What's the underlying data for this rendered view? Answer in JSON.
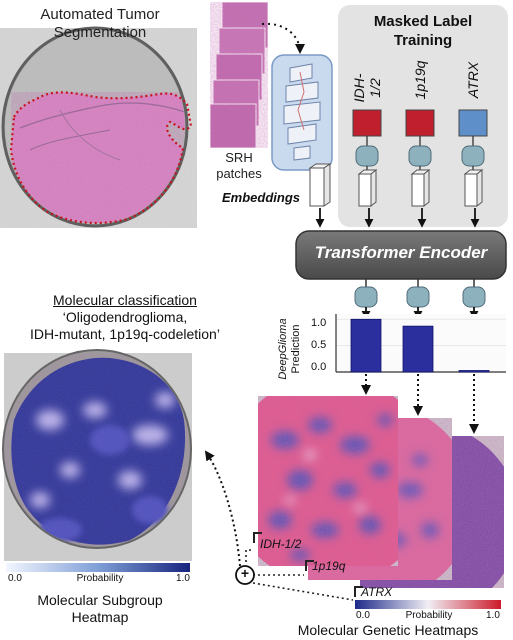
{
  "panels": {
    "segmentation_title_1": "Automated Tumor",
    "segmentation_title_2": "Segmentation",
    "srh_label_1": "SRH",
    "srh_label_2": "patches",
    "embeddings_label": "Embeddings",
    "masked_label_1": "Masked Label",
    "masked_label_2": "Training",
    "transformer_label": "Transformer Encoder",
    "classification_heading": "Molecular classification",
    "classification_line_1": "‘Oligodendroglioma,",
    "classification_line_2": "IDH-mutant, 1p19q-codeletion’",
    "subgroup_title_1": "Molecular Subgroup",
    "subgroup_title_2": "Heatmap",
    "genetic_title": "Molecular Genetic Heatmaps"
  },
  "markers": [
    {
      "label": "IDH-1/2",
      "color": "#c0202e"
    },
    {
      "label": "1p19q",
      "color": "#c0202e"
    },
    {
      "label": "ATRX",
      "color": "#5e8fc8"
    }
  ],
  "prediction": {
    "axis_title_1": "DeepGlioma",
    "axis_title_2": "Prediction",
    "ticks": [
      "1.0",
      "0.5",
      "0.0"
    ]
  },
  "chart_data": {
    "type": "bar",
    "categories": [
      "IDH-1/2",
      "1p19q",
      "ATRX"
    ],
    "values": [
      1.0,
      0.87,
      0.02
    ],
    "ylim": [
      0,
      1.1
    ],
    "ylabel": "DeepGlioma Prediction",
    "bar_color": "#2b2f9e"
  },
  "colorbars": {
    "subgroup": {
      "min": "0.0",
      "mid": "Probability",
      "max": "1.0"
    },
    "genetic": {
      "min": "0.0",
      "mid": "Probability",
      "max": "1.0"
    }
  },
  "heatmap_labels": [
    "IDH-1/2",
    "1p19q",
    "ATRX"
  ],
  "fusion_symbol": "+"
}
